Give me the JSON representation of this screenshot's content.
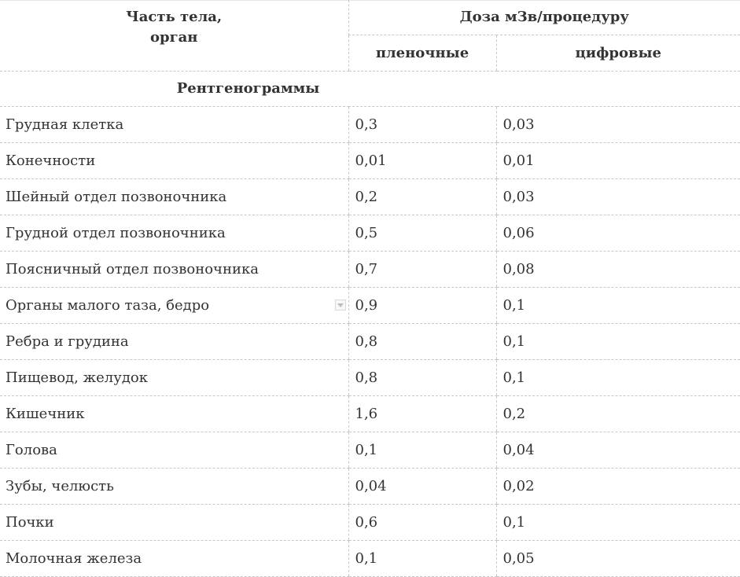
{
  "header": {
    "organ_line1": "Часть тела,",
    "organ_line2": "орган",
    "dose": "Доза мЗв/процедуру",
    "film": "пленочные",
    "digital": "цифровые"
  },
  "section_title": "Рентгенограммы",
  "rows": [
    {
      "organ": "Грудная клетка",
      "film": "0,3",
      "digital": "0,03"
    },
    {
      "organ": "Конечности",
      "film": "0,01",
      "digital": "0,01"
    },
    {
      "organ": "Шейный отдел позвоночника",
      "film": "0,2",
      "digital": "0,03"
    },
    {
      "organ": "Грудной отдел позвоночника",
      "film": "0,5",
      "digital": "0,06"
    },
    {
      "organ": "Поясничный отдел позвоночника",
      "film": "0,7",
      "digital": "0,08"
    },
    {
      "organ": "Органы малого таза, бедро",
      "film": "0,9",
      "digital": "0,1"
    },
    {
      "organ": "Ребра и грудина",
      "film": "0,8",
      "digital": "0,1"
    },
    {
      "organ": "Пищевод, желудок",
      "film": "0,8",
      "digital": "0,1"
    },
    {
      "organ": "Кишечник",
      "film": "1,6",
      "digital": "0,2"
    },
    {
      "organ": "Голова",
      "film": "0,1",
      "digital": "0,04"
    },
    {
      "organ": "Зубы, челюсть",
      "film": "0,04",
      "digital": "0,02"
    },
    {
      "organ": "Почки",
      "film": "0,6",
      "digital": "0,1"
    },
    {
      "organ": "Молочная железа",
      "film": "0,1",
      "digital": "0,05"
    }
  ],
  "dropdown_icon": "chevron-down-icon"
}
